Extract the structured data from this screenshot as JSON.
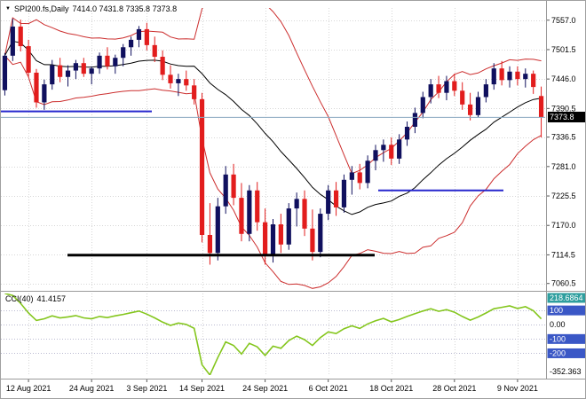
{
  "header": {
    "symbol_timeframe": "SPI200.fs,Daily",
    "ohlc_text": "7414.0 7431.8 7335.8 7373.8"
  },
  "indicator_label": {
    "name": "CCI(40)",
    "value": "41.4157"
  },
  "colors": {
    "background": "#ffffff",
    "bull": "#10105e",
    "bear": "#e21d1d",
    "grid": "#d6d6d6",
    "axis_text": "#000000",
    "badge_bg": "#000000",
    "badge_text": "#ffffff",
    "chip_blue": "#3a57c6",
    "chip_teal": "#2e9e9e",
    "panel_border": "#9a9a9a",
    "bid_line": "#8aa8c0",
    "cci_line": "#84c61d",
    "band_red": "#cc2e2e",
    "ma_black": "#000000",
    "trend_blue": "#2727cd"
  },
  "chart_data": {
    "type": "candlestick",
    "symbol": "SPI200.fs",
    "timeframe": "Daily",
    "title": "SPI200.fs Daily with Bollinger-style bands and CCI(40)",
    "last_bar": {
      "open": 7414.0,
      "high": 7431.8,
      "low": 7335.8,
      "close": 7373.8
    },
    "current_price": "7373.8",
    "price_range": [
      7050,
      7580
    ],
    "price_axis_labels": [
      "7557.0",
      "7501.5",
      "7446.0",
      "7390.5",
      "7336.5",
      "7281.0",
      "7225.5",
      "7170.0",
      "7114.5",
      "7060.5"
    ],
    "date_ticks": [
      {
        "label": "12 Aug 2021",
        "i": 3
      },
      {
        "label": "24 Aug 2021",
        "i": 11
      },
      {
        "label": "3 Sep 2021",
        "i": 18
      },
      {
        "label": "14 Sep 2021",
        "i": 25
      },
      {
        "label": "24 Sep 2021",
        "i": 33
      },
      {
        "label": "6 Oct 2021",
        "i": 41
      },
      {
        "label": "18 Oct 2021",
        "i": 49
      },
      {
        "label": "28 Oct 2021",
        "i": 57
      },
      {
        "label": "9 Nov 2021",
        "i": 65
      }
    ],
    "candles": [
      [
        7425,
        7495,
        7415,
        7490
      ],
      [
        7490,
        7560,
        7480,
        7545
      ],
      [
        7545,
        7558,
        7498,
        7508
      ],
      [
        7508,
        7520,
        7450,
        7458
      ],
      [
        7458,
        7465,
        7392,
        7402
      ],
      [
        7402,
        7445,
        7388,
        7436
      ],
      [
        7436,
        7482,
        7426,
        7472
      ],
      [
        7472,
        7486,
        7440,
        7450
      ],
      [
        7450,
        7472,
        7432,
        7462
      ],
      [
        7462,
        7482,
        7446,
        7476
      ],
      [
        7476,
        7486,
        7450,
        7456
      ],
      [
        7456,
        7470,
        7436,
        7466
      ],
      [
        7466,
        7496,
        7456,
        7490
      ],
      [
        7490,
        7506,
        7464,
        7470
      ],
      [
        7470,
        7492,
        7456,
        7486
      ],
      [
        7486,
        7512,
        7470,
        7506
      ],
      [
        7506,
        7526,
        7490,
        7520
      ],
      [
        7520,
        7546,
        7506,
        7540
      ],
      [
        7540,
        7552,
        7500,
        7510
      ],
      [
        7510,
        7526,
        7478,
        7488
      ],
      [
        7488,
        7500,
        7444,
        7454
      ],
      [
        7454,
        7472,
        7428,
        7438
      ],
      [
        7438,
        7456,
        7414,
        7446
      ],
      [
        7446,
        7462,
        7424,
        7434
      ],
      [
        7434,
        7446,
        7398,
        7408
      ],
      [
        7408,
        7420,
        7138,
        7152
      ],
      [
        7152,
        7212,
        7096,
        7118
      ],
      [
        7118,
        7222,
        7104,
        7206
      ],
      [
        7206,
        7282,
        7192,
        7266
      ],
      [
        7266,
        7286,
        7208,
        7222
      ],
      [
        7222,
        7250,
        7140,
        7154
      ],
      [
        7154,
        7246,
        7140,
        7236
      ],
      [
        7236,
        7252,
        7160,
        7176
      ],
      [
        7176,
        7202,
        7096,
        7112
      ],
      [
        7112,
        7182,
        7100,
        7172
      ],
      [
        7172,
        7192,
        7118,
        7134
      ],
      [
        7134,
        7212,
        7124,
        7202
      ],
      [
        7202,
        7232,
        7168,
        7220
      ],
      [
        7220,
        7236,
        7150,
        7164
      ],
      [
        7164,
        7200,
        7104,
        7120
      ],
      [
        7120,
        7202,
        7110,
        7192
      ],
      [
        7192,
        7246,
        7180,
        7236
      ],
      [
        7236,
        7252,
        7188,
        7204
      ],
      [
        7204,
        7266,
        7194,
        7256
      ],
      [
        7256,
        7282,
        7228,
        7270
      ],
      [
        7270,
        7286,
        7238,
        7250
      ],
      [
        7250,
        7302,
        7240,
        7292
      ],
      [
        7292,
        7322,
        7274,
        7312
      ],
      [
        7312,
        7332,
        7290,
        7322
      ],
      [
        7322,
        7336,
        7284,
        7296
      ],
      [
        7296,
        7342,
        7286,
        7332
      ],
      [
        7332,
        7366,
        7320,
        7356
      ],
      [
        7356,
        7392,
        7344,
        7382
      ],
      [
        7382,
        7422,
        7372,
        7412
      ],
      [
        7412,
        7446,
        7400,
        7436
      ],
      [
        7436,
        7452,
        7410,
        7420
      ],
      [
        7420,
        7452,
        7406,
        7442
      ],
      [
        7442,
        7456,
        7414,
        7424
      ],
      [
        7424,
        7440,
        7388,
        7398
      ],
      [
        7398,
        7420,
        7368,
        7378
      ],
      [
        7378,
        7422,
        7374,
        7412
      ],
      [
        7412,
        7446,
        7402,
        7436
      ],
      [
        7436,
        7476,
        7426,
        7466
      ],
      [
        7466,
        7480,
        7434,
        7444
      ],
      [
        7444,
        7470,
        7430,
        7460
      ],
      [
        7460,
        7470,
        7434,
        7446
      ],
      [
        7446,
        7466,
        7430,
        7456
      ],
      [
        7456,
        7462,
        7418,
        7431
      ],
      [
        7414.0,
        7431.8,
        7335.8,
        7373.8
      ]
    ],
    "overlays": {
      "bollinger": {
        "period": 20,
        "deviation": 1.6
      },
      "hlines": [
        {
          "price": 7385,
          "x0": 0.0,
          "x1": 0.278,
          "width": 2,
          "color": "blue",
          "name": "blue-level-line-left"
        },
        {
          "price": 7236,
          "x0": 0.694,
          "x1": 0.923,
          "width": 2,
          "color": "blue",
          "name": "blue-level-line-right"
        },
        {
          "price": 7114,
          "x0": 0.122,
          "x1": 0.686,
          "width": 3,
          "color": "black",
          "name": "black-level-line"
        }
      ],
      "bid_line_price": 7373.8
    },
    "indicator": {
      "name": "CCI(40)",
      "current": "41.4157",
      "scale_max": 218.6864,
      "scale_min": -352.363,
      "levels": [
        100,
        0,
        -100,
        -200
      ],
      "axis_labels": [
        {
          "text": "218.6864",
          "value": 218.6864,
          "chip": "teal"
        },
        {
          "text": "100",
          "value": 100,
          "chip": "blue"
        },
        {
          "text": "0.00",
          "value": 0,
          "chip": "none"
        },
        {
          "text": "-100",
          "value": -100,
          "chip": "blue"
        },
        {
          "text": "-200",
          "value": -200,
          "chip": "blue"
        },
        {
          "text": "-352.363",
          "value": -352.363,
          "chip": "none"
        }
      ],
      "values": [
        218.6864,
        205,
        150,
        82,
        30,
        42,
        62,
        48,
        55,
        64,
        48,
        42,
        58,
        50,
        62,
        72,
        84,
        96,
        74,
        48,
        18,
        -5,
        12,
        2,
        -25,
        -280,
        -352.363,
        -230,
        -120,
        -145,
        -205,
        -130,
        -155,
        -215,
        -150,
        -165,
        -110,
        -80,
        -105,
        -145,
        -90,
        -50,
        -62,
        -28,
        -8,
        -26,
        6,
        28,
        44,
        20,
        36,
        58,
        78,
        96,
        112,
        94,
        106,
        88,
        58,
        32,
        54,
        82,
        112,
        122,
        132,
        114,
        126,
        98,
        41.4157
      ]
    }
  }
}
